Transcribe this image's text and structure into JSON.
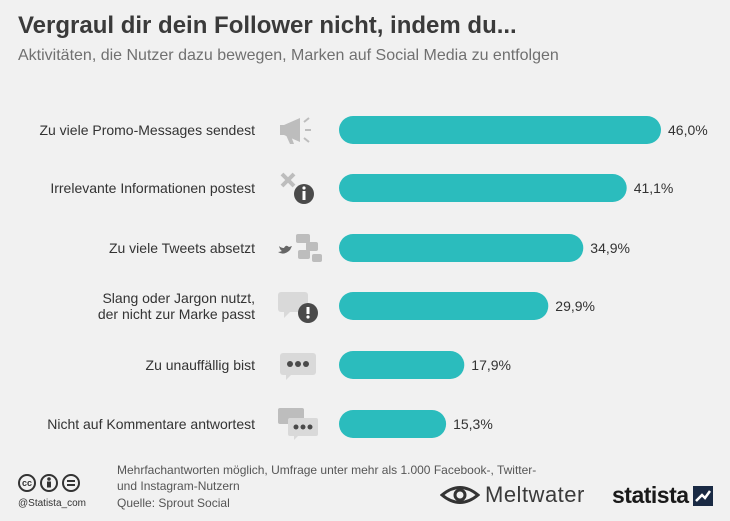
{
  "header": {
    "title": "Vergraul dir dein Follower nicht, indem du...",
    "subtitle": "Aktivitäten, die Nutzer dazu bewegen, Marken auf Social Media zu entfolgen"
  },
  "chart_data": {
    "type": "bar",
    "orientation": "horizontal",
    "categories": [
      "Zu viele Promo-Messages sendest",
      "Irrelevante Informationen postest",
      "Zu viele Tweets absetzt",
      "Slang oder Jargon nutzt,\nder nicht zur Marke passt",
      "Zu unauffällig bist",
      "Nicht auf Kommentare antwortest"
    ],
    "values": [
      46.0,
      41.1,
      34.9,
      29.9,
      17.9,
      15.3
    ],
    "value_labels": [
      "46,0%",
      "41,1%",
      "34,9%",
      "29,9%",
      "17,9%",
      "15,3%"
    ],
    "icons": [
      "megaphone-icon",
      "irrelevant-info-icon",
      "tweets-icon",
      "speech-bubble-exclamation-icon",
      "dots-bubble-icon",
      "comments-icon"
    ],
    "bar_color": "#2bbcbd",
    "xlim": [
      0,
      46
    ],
    "grid": false
  },
  "footer": {
    "note": "Mehrfachantworten möglich, Umfrage unter mehr als 1.000 Facebook-, Twitter- und Instagram-Nutzern",
    "source": "Quelle: Sprout Social",
    "handle": "@Statista_com",
    "meltwater": "Meltwater",
    "statista": "statista"
  }
}
